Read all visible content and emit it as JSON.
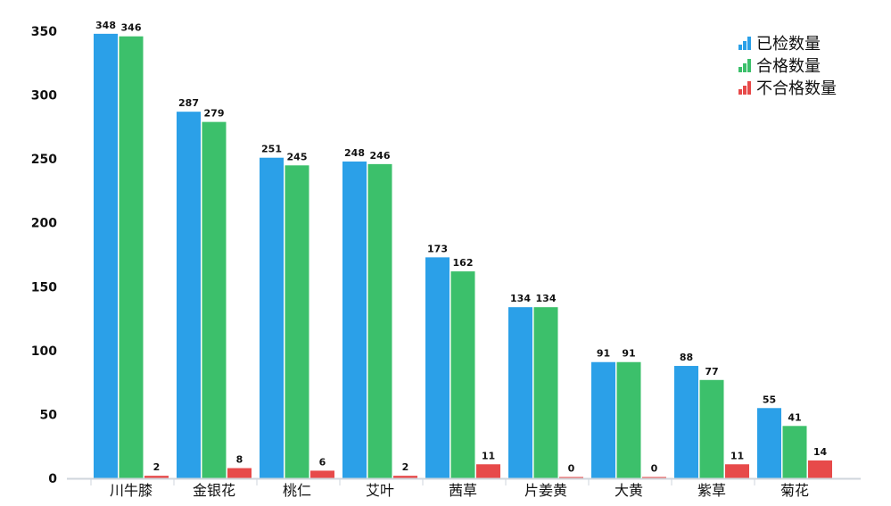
{
  "chart_data": {
    "type": "bar",
    "categories": [
      "川牛膝",
      "金银花",
      "桃仁",
      "艾叶",
      "茜草",
      "片姜黄",
      "大黄",
      "紫草",
      "菊花"
    ],
    "series": [
      {
        "name": "已检数量",
        "color": "#2ba0e8",
        "values": [
          348,
          287,
          251,
          248,
          173,
          134,
          91,
          88,
          55
        ]
      },
      {
        "name": "合格数量",
        "color": "#3cc06b",
        "values": [
          346,
          279,
          245,
          246,
          162,
          134,
          91,
          77,
          41
        ]
      },
      {
        "name": "不合格数量",
        "color": "#e74a4a",
        "values": [
          2,
          8,
          6,
          2,
          11,
          0,
          0,
          11,
          14
        ]
      }
    ],
    "yticks": [
      0,
      50,
      100,
      150,
      200,
      250,
      300,
      350
    ],
    "ylim": [
      0,
      350
    ],
    "legend_position": "top-right",
    "grid": false
  }
}
